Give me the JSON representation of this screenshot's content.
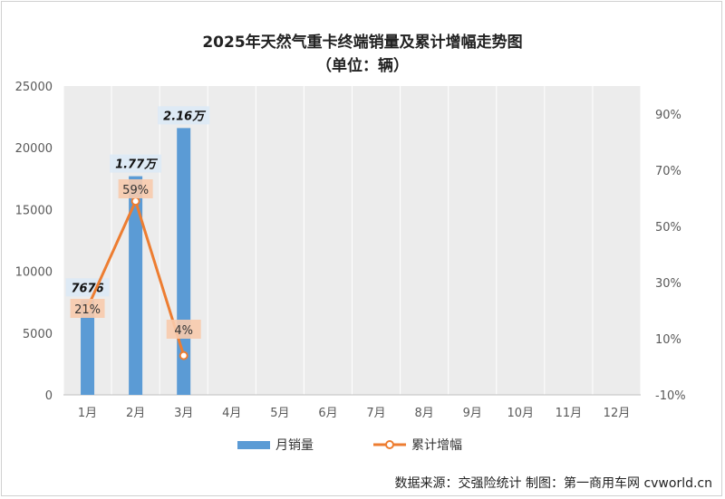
{
  "chart_data": {
    "type": "bar",
    "title": "2025年天然气重卡终端销量及累计增幅走势图",
    "subtitle": "（单位：辆）",
    "categories": [
      "1月",
      "2月",
      "3月",
      "4月",
      "5月",
      "6月",
      "7月",
      "8月",
      "9月",
      "10月",
      "11月",
      "12月"
    ],
    "series": [
      {
        "name": "月销量",
        "type": "bar",
        "axis": "left",
        "color": "#5b9bd5",
        "values": [
          7676,
          17700,
          21600,
          null,
          null,
          null,
          null,
          null,
          null,
          null,
          null,
          null
        ],
        "labels": [
          "7676",
          "1.77万",
          "2.16万",
          "",
          "",
          "",
          "",
          "",
          "",
          "",
          "",
          ""
        ]
      },
      {
        "name": "累计增幅",
        "type": "line",
        "axis": "right",
        "color": "#ed7d31",
        "values": [
          21,
          59,
          4,
          null,
          null,
          null,
          null,
          null,
          null,
          null,
          null,
          null
        ],
        "labels": [
          "21%",
          "59%",
          "4%",
          "",
          "",
          "",
          "",
          "",
          "",
          "",
          "",
          ""
        ]
      }
    ],
    "y_left": {
      "min": 0,
      "max": 25000,
      "ticks": [
        "0",
        "5000",
        "10000",
        "15000",
        "20000",
        "25000"
      ]
    },
    "y_right": {
      "min": -10,
      "max": 100,
      "ticks": [
        "-10%",
        "10%",
        "30%",
        "50%",
        "70%",
        "90%"
      ]
    },
    "legend_position": "bottom",
    "grid": true
  },
  "source_text": "数据来源：交强险统计  制图：第一商用车网 cvworld.cn"
}
